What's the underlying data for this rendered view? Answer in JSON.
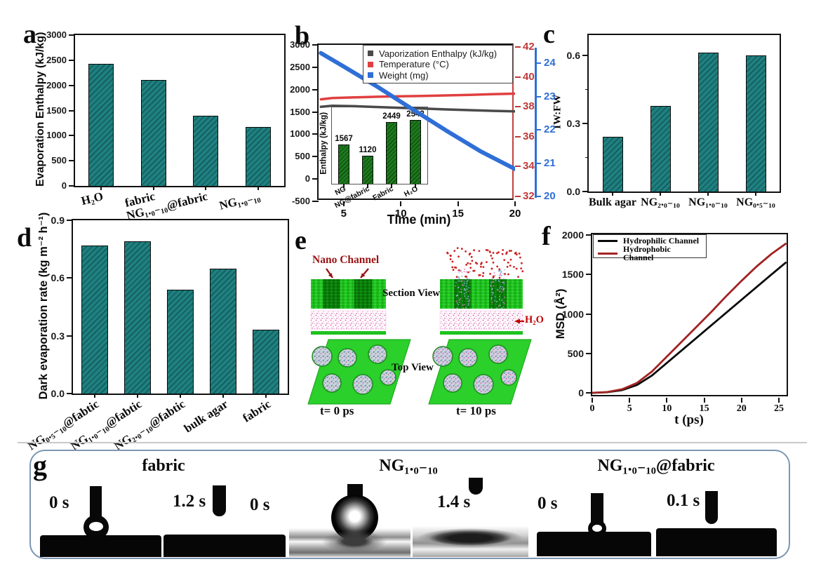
{
  "colors": {
    "bar_teal": "#1f8080",
    "bar_teal_hatch": "#145c5c",
    "bar_green": "#1d7a1d",
    "bar_green_hatch": "#0e4d0e",
    "red_axis": "#c03a3a",
    "blue_axis": "#2f6fd6",
    "panel_g_border": "#7d96b2",
    "slab_green": "#1ec21e",
    "channel_green": "#0b7d0b",
    "vapor_red": "#cc2222",
    "water_pink": "#e06db8",
    "topview_green": "#2bd02b",
    "dark_red_text": "#9b1313"
  },
  "panel_letters": {
    "a": "a",
    "b": "b",
    "c": "c",
    "d": "d",
    "e": "e",
    "f": "f",
    "g": "g"
  },
  "chart_data": [
    {
      "id": "a",
      "type": "bar",
      "ylabel": "Evaporation Enthalpy (kJ/kg)",
      "ylim": [
        0,
        3000
      ],
      "yticks": [
        0,
        500,
        1000,
        1500,
        2000,
        2500,
        3000
      ],
      "categories": [
        "H₂O",
        "fabric",
        "NG₁.₀₋₁₀@fabric",
        "NG₁.₀₋₁₀"
      ],
      "values": [
        2425,
        2105,
        1390,
        1170
      ]
    },
    {
      "id": "b",
      "type": "line",
      "xlabel": "Time (min)",
      "xticks": [
        5,
        10,
        15,
        20
      ],
      "xlim": [
        2.8,
        20
      ],
      "axes": {
        "left": {
          "ticks": [
            3000,
            2500,
            2000,
            1500,
            1000,
            500,
            0,
            -500
          ],
          "lim": [
            -500,
            3000
          ]
        },
        "right_red": {
          "ticks": [
            42,
            40,
            38,
            36,
            34,
            32
          ],
          "lim": [
            32,
            42
          ]
        },
        "right_blue": {
          "ticks": [
            24,
            23,
            22,
            21,
            20
          ],
          "lim": [
            20,
            24
          ]
        }
      },
      "series": [
        {
          "name": "Vaporization Enthalpy (kJ/kg)",
          "color": "#4a4a4a",
          "axis": "left",
          "width": 3.5,
          "points": [
            [
              3,
              1615
            ],
            [
              4,
              1640
            ],
            [
              6,
              1628
            ],
            [
              8,
              1610
            ],
            [
              10,
              1592
            ],
            [
              12,
              1575
            ],
            [
              14,
              1556
            ],
            [
              16,
              1540
            ],
            [
              18,
              1524
            ],
            [
              20,
              1512
            ]
          ]
        },
        {
          "name": "Temperature (°C)",
          "color": "#e04040",
          "axis": "red",
          "width": 3.5,
          "points": [
            [
              3,
              38.5
            ],
            [
              4,
              38.58
            ],
            [
              6,
              38.63
            ],
            [
              8,
              38.67
            ],
            [
              10,
              38.7
            ],
            [
              12,
              38.73
            ],
            [
              14,
              38.76
            ],
            [
              16,
              38.8
            ],
            [
              18,
              38.84
            ],
            [
              20,
              38.88
            ]
          ]
        },
        {
          "name": "Weight (mg)",
          "color": "#2f6fd6",
          "axis": "blue",
          "width": 6,
          "points": [
            [
              3,
              24.3
            ],
            [
              5,
              23.9
            ],
            [
              8,
              23.28
            ],
            [
              11,
              22.62
            ],
            [
              14,
              21.97
            ],
            [
              17,
              21.35
            ],
            [
              20,
              20.82
            ]
          ]
        }
      ]
    },
    {
      "id": "b_inset",
      "type": "bar",
      "ylabel": "Enthalpy (kJ/kg)",
      "ylim": [
        0,
        3030
      ],
      "yticks": [],
      "categories": [
        "NG",
        "NG@fabric",
        "Fabric",
        "H₂O"
      ],
      "values": [
        1567,
        1120,
        2449,
        2542
      ],
      "show_values": true
    },
    {
      "id": "c",
      "type": "bar",
      "ylabel": "IW:FW",
      "ylim": [
        0,
        0.688
      ],
      "yticks": [
        0,
        0.3,
        0.6
      ],
      "ytick_labels": [
        "0.0",
        "0.3",
        "0.6"
      ],
      "yminor": [
        0.15,
        0.45
      ],
      "categories": [
        "Bulk agar",
        "NG₂.₀₋₁₀",
        "NG₁.₀₋₁₀",
        "NG₀.₅₋₁₀"
      ],
      "values": [
        0.24,
        0.375,
        0.61,
        0.6
      ]
    },
    {
      "id": "d",
      "type": "bar",
      "ylabel": "Dark evaporation rate (kg m⁻² h⁻¹)",
      "ylim": [
        0,
        0.9
      ],
      "yticks": [
        0,
        0.3,
        0.6,
        0.9
      ],
      "ytick_labels": [
        "0.0",
        "0.3",
        "0.6",
        "0.9"
      ],
      "categories": [
        "NG₀.₅₋₁₀@fabtic",
        "NG₁.₀₋₁₀@fabtic",
        "NG₂.₀₋₁₀@fabtic",
        "bulk agar",
        "fabric"
      ],
      "values": [
        0.77,
        0.79,
        0.54,
        0.65,
        0.33
      ]
    },
    {
      "id": "f",
      "type": "line",
      "xlabel": "t (ps)",
      "ylabel": "MSD (Å²)",
      "xticks": [
        0,
        5,
        10,
        15,
        20,
        25
      ],
      "yticks": [
        0,
        500,
        1000,
        1500,
        2000
      ],
      "xlim": [
        0,
        26.4
      ],
      "ylim": [
        0,
        2000
      ],
      "series": [
        {
          "name": "Hydrophilic Channel",
          "color": "#0a0a0a",
          "axis": "y",
          "width": 2.8,
          "points": [
            [
              0,
              0
            ],
            [
              2,
              8
            ],
            [
              4,
              35
            ],
            [
              6,
              100
            ],
            [
              8,
              220
            ],
            [
              10,
              380
            ],
            [
              12,
              540
            ],
            [
              14,
              700
            ],
            [
              16,
              860
            ],
            [
              18,
              1020
            ],
            [
              20,
              1180
            ],
            [
              22,
              1340
            ],
            [
              24,
              1500
            ],
            [
              26,
              1656
            ]
          ]
        },
        {
          "name": "Hydrophobic Channel",
          "color": "#a22323",
          "axis": "y",
          "width": 2.8,
          "points": [
            [
              0,
              0
            ],
            [
              2,
              10
            ],
            [
              4,
              45
            ],
            [
              6,
              125
            ],
            [
              8,
              270
            ],
            [
              10,
              460
            ],
            [
              12,
              650
            ],
            [
              14,
              840
            ],
            [
              16,
              1030
            ],
            [
              18,
              1230
            ],
            [
              20,
              1420
            ],
            [
              22,
              1600
            ],
            [
              24,
              1760
            ],
            [
              26,
              1895
            ]
          ]
        }
      ]
    }
  ],
  "panel_e": {
    "nano_channel": "Nano Channel",
    "section_view": "Section View",
    "h2o": "H₂O",
    "top_view": "Top View",
    "t0": "t= 0 ps",
    "t10": "t= 10 ps"
  },
  "panel_g": {
    "titles": [
      "fabric",
      "NG₁.₀₋₁₀",
      "NG₁.₀₋₁₀@fabric"
    ],
    "tiles": [
      {
        "time": "0 s"
      },
      {
        "time": "1.2 s"
      },
      {
        "time": "0 s"
      },
      {
        "time": "1.4 s"
      },
      {
        "time": "0 s"
      },
      {
        "time": "0.1 s"
      }
    ]
  }
}
